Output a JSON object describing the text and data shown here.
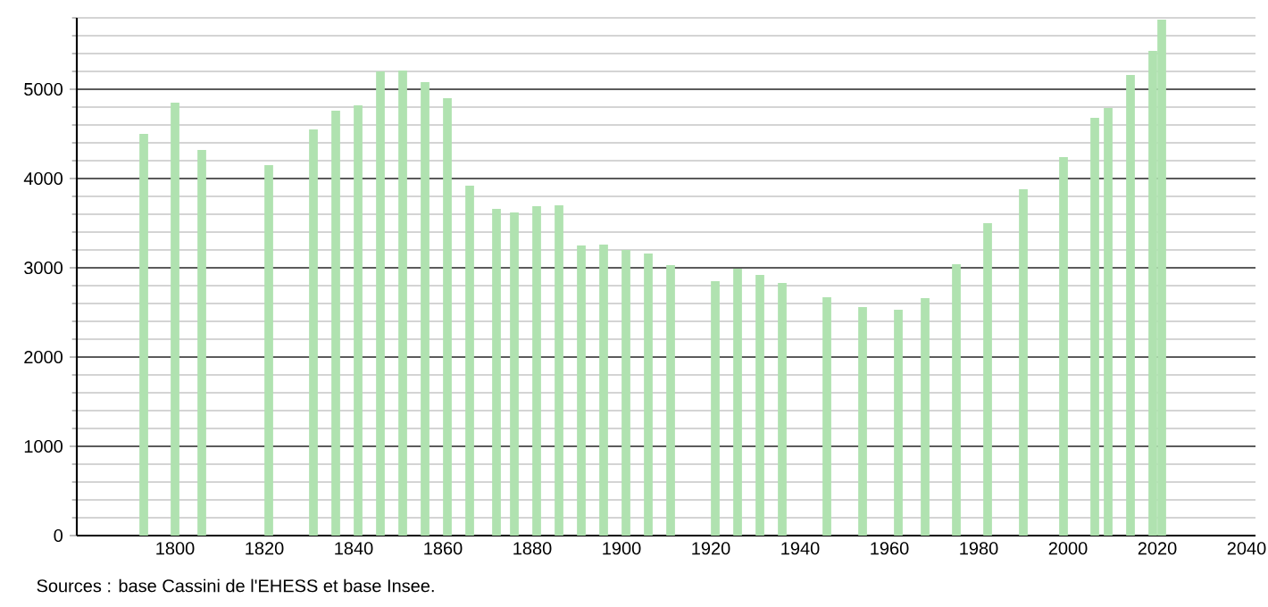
{
  "chart_data": {
    "type": "bar",
    "color": "#b0e2b0",
    "x": [
      1793,
      1800,
      1806,
      1821,
      1831,
      1836,
      1841,
      1846,
      1851,
      1856,
      1861,
      1866,
      1872,
      1876,
      1881,
      1886,
      1891,
      1896,
      1901,
      1906,
      1911,
      1921,
      1926,
      1931,
      1936,
      1946,
      1954,
      1962,
      1968,
      1975,
      1982,
      1990,
      1999,
      2006,
      2009,
      2014,
      2019,
      2021
    ],
    "values": [
      4500,
      4850,
      4320,
      4150,
      4550,
      4760,
      4820,
      5200,
      5210,
      5080,
      4900,
      3920,
      3660,
      3620,
      3690,
      3700,
      3250,
      3260,
      3200,
      3160,
      3030,
      2850,
      2990,
      2920,
      2830,
      2670,
      2560,
      2530,
      2660,
      3040,
      3500,
      3880,
      4240,
      4680,
      4790,
      5160,
      5430,
      5780
    ],
    "xlim": [
      1778,
      2042
    ],
    "xticks": [
      1800,
      1820,
      1840,
      1860,
      1880,
      1900,
      1920,
      1940,
      1960,
      1980,
      2000,
      2020,
      2040
    ],
    "ylim": [
      0,
      5800
    ],
    "yticks": [
      0,
      {
        "value": 200,
        "label": null
      },
      {
        "value": 400,
        "label": null
      },
      {
        "value": 600,
        "label": null
      },
      {
        "value": 800,
        "label": null
      },
      1000,
      {
        "value": 1200,
        "label": null
      },
      {
        "value": 1400,
        "label": null
      },
      {
        "value": 1600,
        "label": null
      },
      {
        "value": 1800,
        "label": null
      },
      2000,
      {
        "value": 2200,
        "label": null
      },
      {
        "value": 2400,
        "label": null
      },
      {
        "value": 2600,
        "label": null
      },
      {
        "value": 2800,
        "label": null
      },
      3000,
      {
        "value": 3200,
        "label": null
      },
      {
        "value": 3400,
        "label": null
      },
      {
        "value": 3600,
        "label": null
      },
      {
        "value": 3800,
        "label": null
      },
      4000,
      {
        "value": 4200,
        "label": null
      },
      {
        "value": 4400,
        "label": null
      },
      {
        "value": 4600,
        "label": null
      },
      {
        "value": 4800,
        "label": null
      },
      5000,
      {
        "value": 5200,
        "label": null
      },
      {
        "value": 5400,
        "label": null
      },
      {
        "value": 5600,
        "label": null
      },
      {
        "value": 5800,
        "label": null
      }
    ],
    "grid": "y",
    "annotations": [
      "Sources : base Cassini de l'EHESS et base Insee."
    ]
  }
}
